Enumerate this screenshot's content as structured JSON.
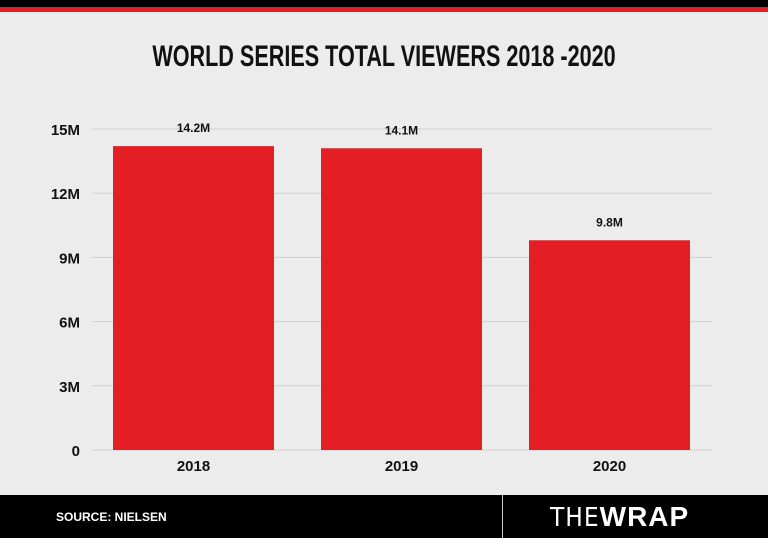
{
  "header": {
    "title": "WORLD SERIES TOTAL VIEWERS 2018 -2020"
  },
  "colors": {
    "bar": "#e31e24",
    "accent": "#e31e24",
    "background": "#ececec"
  },
  "chart_data": {
    "type": "bar",
    "title": "WORLD SERIES TOTAL VIEWERS 2018 -2020",
    "categories": [
      "2018",
      "2019",
      "2020"
    ],
    "values": [
      14.2,
      14.1,
      9.8
    ],
    "data_labels": [
      "14.2M",
      "14.1M",
      "9.8M"
    ],
    "yticks": [
      0,
      3,
      6,
      9,
      12,
      15
    ],
    "ytick_labels": [
      "0",
      "3M",
      "6M",
      "9M",
      "12M",
      "15M"
    ],
    "ylim": [
      0,
      15
    ],
    "grid": true,
    "unit": "M"
  },
  "footer": {
    "source": "SOURCE: NIELSEN",
    "logo": "THEWRAP",
    "logo_a": "THE",
    "logo_b": "WRAP"
  }
}
